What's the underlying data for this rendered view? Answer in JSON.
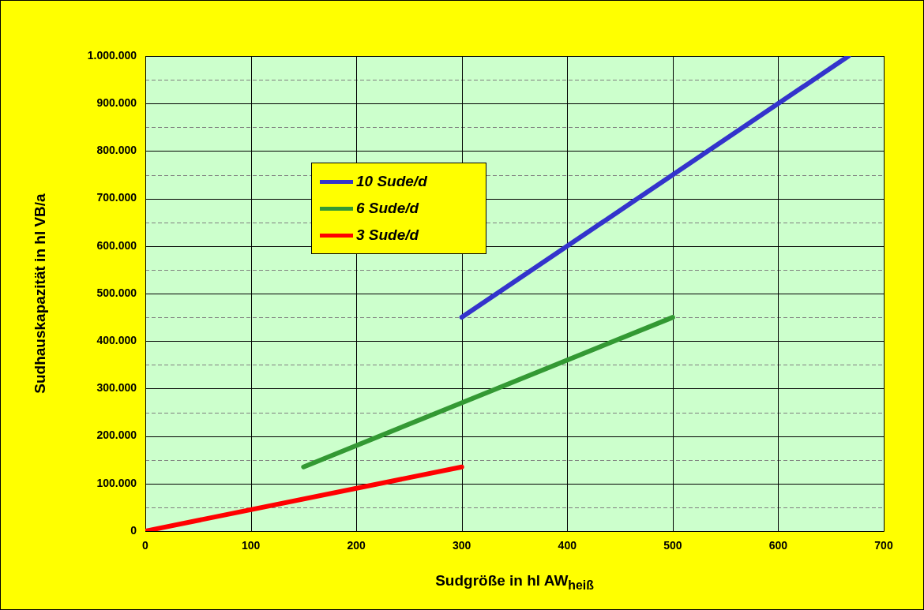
{
  "chart_data": {
    "type": "line",
    "xlabel": "Sudgröße in hl AW$_{heiß}$",
    "ylabel": "Sudhauskapazität in hl VB/a",
    "series": [
      {
        "name": "10 Sude/d",
        "color": "#3333cc",
        "x": [
          300,
          666.7
        ],
        "values": [
          450000,
          1000000
        ]
      },
      {
        "name": "6 Sude/d",
        "color": "#339933",
        "x": [
          150,
          500
        ],
        "values": [
          135000,
          450000
        ]
      },
      {
        "name": "3 Sude/d",
        "color": "#ff0000",
        "x": [
          0,
          300
        ],
        "values": [
          0,
          135000
        ]
      }
    ],
    "xlim": [
      0,
      700
    ],
    "xticks": [
      0,
      100,
      200,
      300,
      400,
      500,
      600,
      700
    ],
    "ylim": [
      0,
      1000000
    ],
    "yticks": [
      {
        "value": 0,
        "label": "0"
      },
      {
        "value": 50000,
        "label": null
      },
      {
        "value": 100000,
        "label": "100.000"
      },
      {
        "value": 150000,
        "label": null
      },
      {
        "value": 200000,
        "label": "200.000"
      },
      {
        "value": 250000,
        "label": null
      },
      {
        "value": 300000,
        "label": "300.000"
      },
      {
        "value": 350000,
        "label": null
      },
      {
        "value": 400000,
        "label": "400.000"
      },
      {
        "value": 450000,
        "label": null
      },
      {
        "value": 500000,
        "label": "500.000"
      },
      {
        "value": 550000,
        "label": null
      },
      {
        "value": 600000,
        "label": "600.000"
      },
      {
        "value": 650000,
        "label": null
      },
      {
        "value": 700000,
        "label": "700.000"
      },
      {
        "value": 750000,
        "label": null
      },
      {
        "value": 800000,
        "label": "800.000"
      },
      {
        "value": 850000,
        "label": null
      },
      {
        "value": 900000,
        "label": "900.000"
      },
      {
        "value": 950000,
        "label": null
      },
      {
        "value": 1000000,
        "label": "1.000.000"
      }
    ],
    "grid": true,
    "legend": "top left",
    "marker": "none",
    "line_style": "solid"
  }
}
